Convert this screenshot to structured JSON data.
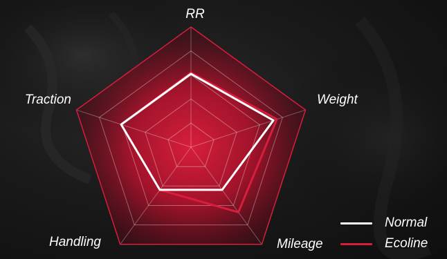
{
  "chart_data": {
    "type": "radar",
    "axes": [
      "RR",
      "Weight",
      "Mileage",
      "Handling",
      "Traction"
    ],
    "range": [
      0,
      5
    ],
    "rings": 5,
    "series": [
      {
        "name": "Normal",
        "color": "#ffffff",
        "values": [
          3.05,
          3.6,
          2.2,
          2.2,
          3.05
        ]
      },
      {
        "name": "Ecoline",
        "color": "#d81e3c",
        "values": [
          3.1,
          3.75,
          3.35,
          2.2,
          3.05
        ]
      }
    ],
    "legend_position": "bottom-right"
  }
}
